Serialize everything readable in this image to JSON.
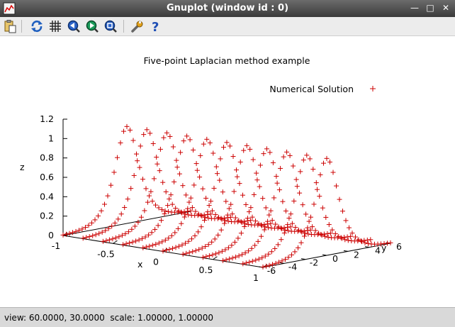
{
  "window": {
    "title": "Gnuplot (window id : 0)"
  },
  "toolbar": {
    "buttons": [
      {
        "name": "copy-to-clipboard-button",
        "icon": "clipboard-icon"
      },
      {
        "name": "replot-button",
        "icon": "replot-icon"
      },
      {
        "name": "grid-button",
        "icon": "grid-icon"
      },
      {
        "name": "previous-zoom-button",
        "icon": "zoom-previous-icon"
      },
      {
        "name": "next-zoom-button",
        "icon": "zoom-next-icon"
      },
      {
        "name": "autoscale-button",
        "icon": "zoom-autoscale-icon"
      },
      {
        "name": "preferences-button",
        "icon": "wrench-icon"
      },
      {
        "name": "help-button",
        "icon": "help-icon"
      }
    ]
  },
  "status": {
    "text": "view: 60.0000, 30.0000  scale: 1.00000, 1.00000"
  },
  "chart_data": {
    "type": "scatter",
    "title": "Five-point Laplacian method example",
    "xlabel": "x",
    "ylabel": "y",
    "zlabel": "z",
    "legend": "top-right",
    "view": [
      60,
      30
    ],
    "xlim": [
      -1,
      1
    ],
    "ylim": [
      -6,
      6
    ],
    "zlim": [
      0,
      1.2
    ],
    "xticks": [
      "-1",
      "-0.5",
      "0",
      "0.5",
      "1"
    ],
    "yticks": [
      "-6",
      "-4",
      "-2",
      "0",
      "2",
      "4",
      "6"
    ],
    "zticks": [
      "0",
      "0.2",
      "0.4",
      "0.6",
      "0.8",
      "1",
      "1.2"
    ],
    "series": [
      {
        "name": "Numerical Solution",
        "marker": "+",
        "color": "#cc0000",
        "function": "z = 1/cosh(y)",
        "x": [
          -1,
          -0.8,
          -0.6,
          -0.4,
          -0.2,
          0,
          0.2,
          0.4,
          0.6,
          0.8,
          1
        ],
        "y_range": [
          -6,
          6
        ],
        "points_per_line": 41
      }
    ]
  }
}
